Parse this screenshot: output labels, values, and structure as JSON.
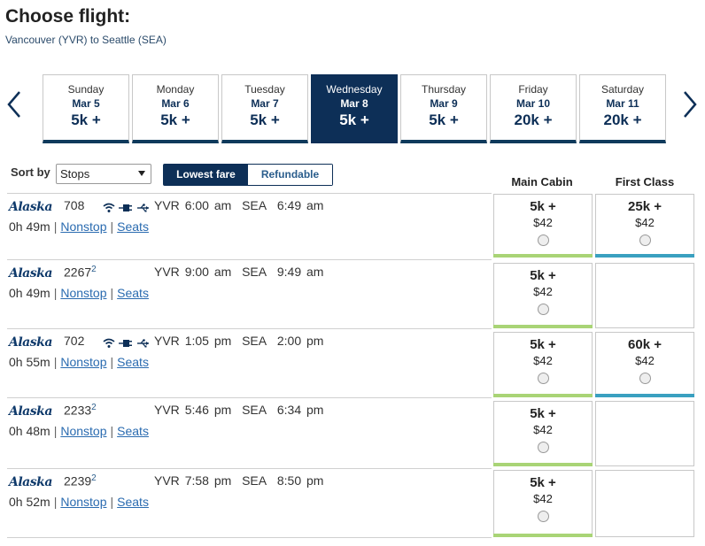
{
  "header": {
    "title": "Choose flight:",
    "route": "Vancouver (YVR) to Seattle (SEA)"
  },
  "dates": [
    {
      "dow": "Sunday",
      "date": "Mar 5",
      "price": "5k +"
    },
    {
      "dow": "Monday",
      "date": "Mar 6",
      "price": "5k +"
    },
    {
      "dow": "Tuesday",
      "date": "Mar 7",
      "price": "5k +"
    },
    {
      "dow": "Wednesday",
      "date": "Mar 8",
      "price": "5k +"
    },
    {
      "dow": "Thursday",
      "date": "Mar 9",
      "price": "5k +"
    },
    {
      "dow": "Friday",
      "date": "Mar 10",
      "price": "20k +"
    },
    {
      "dow": "Saturday",
      "date": "Mar 11",
      "price": "20k +"
    }
  ],
  "selected_date_index": 3,
  "sort": {
    "label": "Sort by",
    "value": "Stops",
    "toggle_on": "Lowest fare",
    "toggle_off": "Refundable"
  },
  "columns": {
    "main": "Main Cabin",
    "first": "First Class"
  },
  "flights": [
    {
      "airline": "Alaska",
      "number": "708",
      "sup": "",
      "amenities": true,
      "from": "YVR",
      "dep": "6:00 am",
      "to": "SEA",
      "arr": "6:49 am",
      "duration": "0h 49m",
      "stops": "Nonstop",
      "seats": "Seats",
      "main": {
        "pts": "5k +",
        "usd": "$42"
      },
      "first": {
        "pts": "25k +",
        "usd": "$42"
      }
    },
    {
      "airline": "Alaska",
      "number": "2267",
      "sup": "2",
      "amenities": false,
      "from": "YVR",
      "dep": "9:00 am",
      "to": "SEA",
      "arr": "9:49 am",
      "duration": "0h 49m",
      "stops": "Nonstop",
      "seats": "Seats",
      "main": {
        "pts": "5k +",
        "usd": "$42"
      },
      "first": null
    },
    {
      "airline": "Alaska",
      "number": "702",
      "sup": "",
      "amenities": true,
      "from": "YVR",
      "dep": "1:05 pm",
      "to": "SEA",
      "arr": "2:00 pm",
      "duration": "0h 55m",
      "stops": "Nonstop",
      "seats": "Seats",
      "main": {
        "pts": "5k +",
        "usd": "$42"
      },
      "first": {
        "pts": "60k +",
        "usd": "$42"
      }
    },
    {
      "airline": "Alaska",
      "number": "2233",
      "sup": "2",
      "amenities": false,
      "from": "YVR",
      "dep": "5:46 pm",
      "to": "SEA",
      "arr": "6:34 pm",
      "duration": "0h 48m",
      "stops": "Nonstop",
      "seats": "Seats",
      "main": {
        "pts": "5k +",
        "usd": "$42"
      },
      "first": null
    },
    {
      "airline": "Alaska",
      "number": "2239",
      "sup": "2",
      "amenities": false,
      "from": "YVR",
      "dep": "7:58 pm",
      "to": "SEA",
      "arr": "8:50 pm",
      "duration": "0h 52m",
      "stops": "Nonstop",
      "seats": "Seats",
      "main": {
        "pts": "5k +",
        "usd": "$42"
      },
      "first": null
    }
  ],
  "colors": {
    "navy": "#0d2f57",
    "main_bar": "#a9d476",
    "first_bar": "#3aa0c0",
    "link": "#2a6bb0"
  }
}
